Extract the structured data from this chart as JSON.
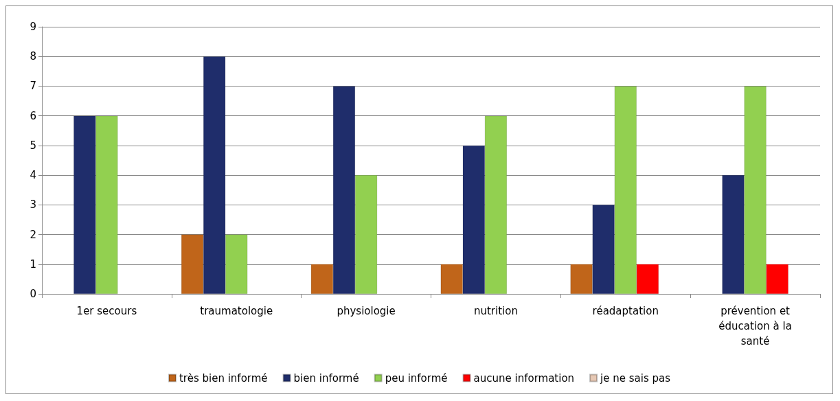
{
  "chart_data": {
    "type": "bar",
    "categories": [
      "1er secours",
      "traumatologie",
      "physiologie",
      "nutrition",
      "réadaptation",
      "prévention et\néducation à la\nsanté"
    ],
    "series": [
      {
        "name": "très bien informé",
        "color": "#c0651a",
        "values": [
          null,
          2,
          1,
          1,
          1,
          null
        ]
      },
      {
        "name": "bien informé",
        "color": "#1f2d6b",
        "values": [
          6,
          8,
          7,
          5,
          3,
          4
        ]
      },
      {
        "name": "peu informé",
        "color": "#92d050",
        "values": [
          6,
          2,
          4,
          6,
          7,
          7
        ]
      },
      {
        "name": "aucune information",
        "color": "#ff0000",
        "values": [
          null,
          null,
          null,
          null,
          1,
          1
        ]
      },
      {
        "name": "je ne sais pas",
        "color": "#e6c8b4",
        "values": [
          null,
          null,
          null,
          null,
          null,
          null
        ]
      }
    ],
    "ylim": [
      0,
      9
    ],
    "yticks": [
      0,
      1,
      2,
      3,
      4,
      5,
      6,
      7,
      8,
      9
    ],
    "grid": "y",
    "legend": "bottom"
  }
}
